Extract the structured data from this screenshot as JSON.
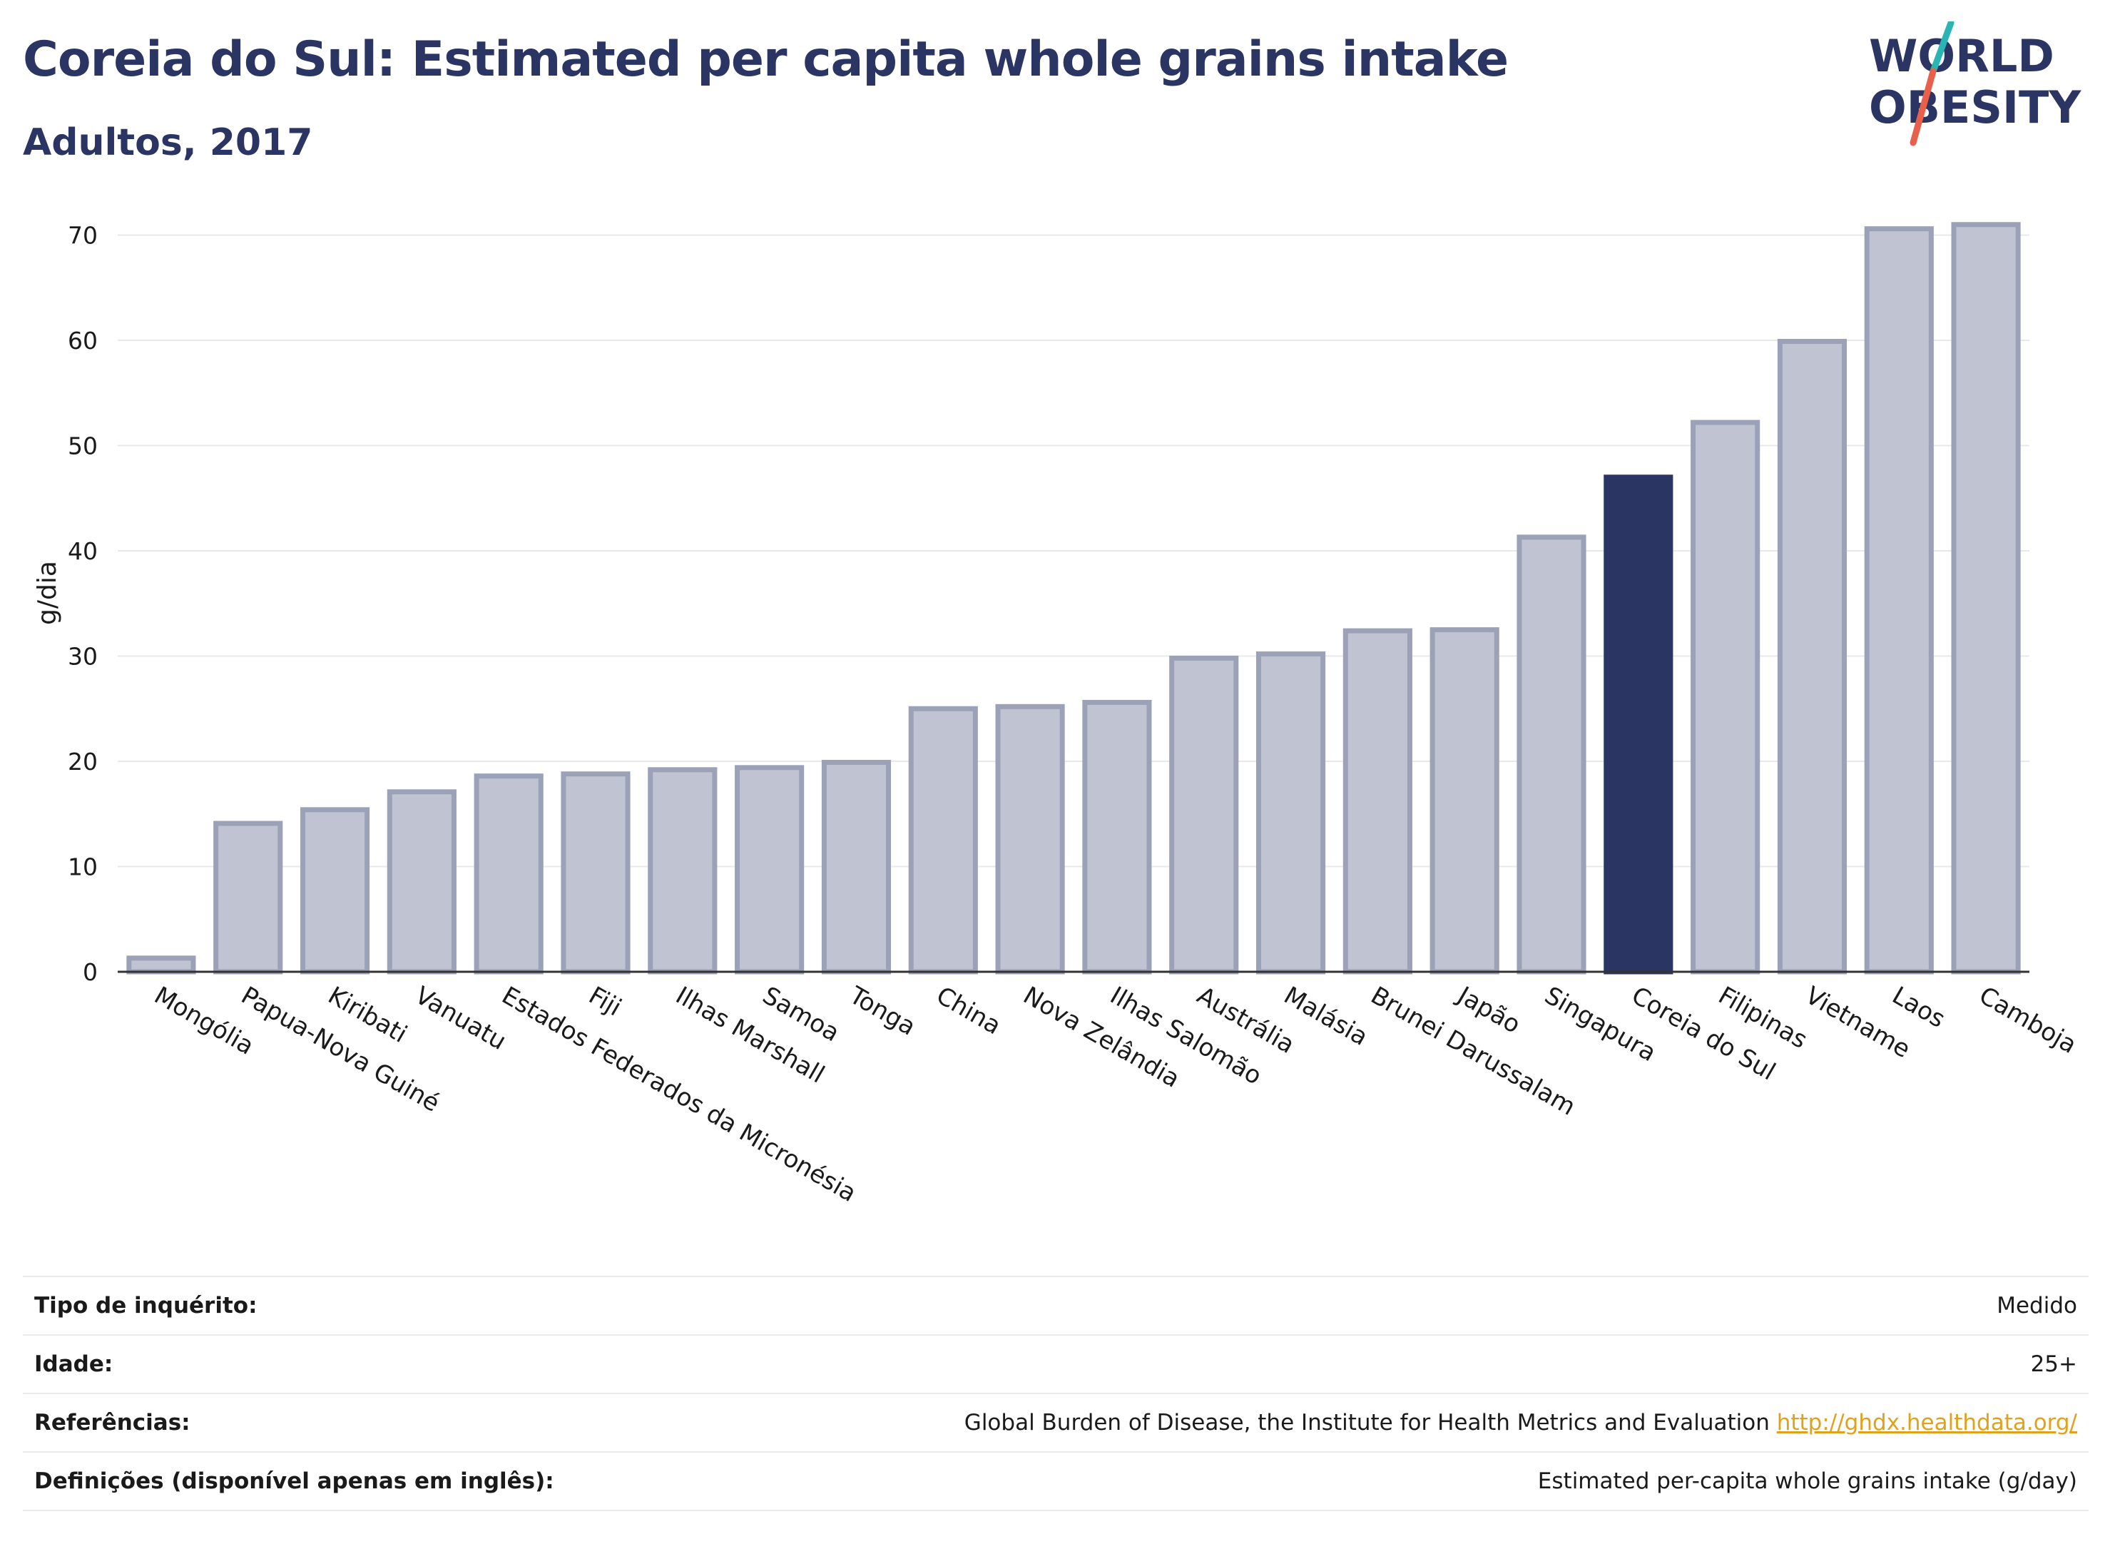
{
  "header": {
    "title": "Coreia do Sul: Estimated per capita whole grains intake",
    "subtitle": "Adultos, 2017"
  },
  "logo": {
    "line1": "WORLD",
    "line2": "OBESITY",
    "slash_colors": [
      "#2bb4b4",
      "#e8604c"
    ],
    "text_color": "#2b3563"
  },
  "chart_data": {
    "type": "bar",
    "ylabel": "g/dia",
    "ylim": [
      0,
      72
    ],
    "yticks": [
      0,
      10,
      20,
      30,
      40,
      50,
      60,
      70
    ],
    "grid": true,
    "highlight": "Coreia do Sul",
    "colors": {
      "bar": "#c0c4d2",
      "bar_edge": "#9ba1b7",
      "highlight": "#2b3563"
    },
    "categories": [
      "Mongólia",
      "Papua-Nova Guiné",
      "Kiribati",
      "Vanuatu",
      "Estados Federados da Micronésia",
      "Fiji",
      "Ilhas Marshall",
      "Samoa",
      "Tonga",
      "China",
      "Nova Zelândia",
      "Ilhas Salomão",
      "Austrália",
      "Malásia",
      "Brunei Darussalam",
      "Japão",
      "Singapura",
      "Coreia do Sul",
      "Filipinas",
      "Vietname",
      "Laos",
      "Camboja"
    ],
    "values": [
      1.3,
      14.1,
      15.4,
      17.1,
      18.6,
      18.8,
      19.2,
      19.4,
      19.9,
      25.0,
      25.2,
      25.6,
      29.8,
      30.2,
      32.4,
      32.5,
      41.3,
      47.0,
      52.2,
      59.9,
      70.6,
      71.0
    ]
  },
  "info": {
    "rows": [
      {
        "label": "Tipo de inquérito:",
        "value": "Medido"
      },
      {
        "label": "Idade:",
        "value": "25+"
      },
      {
        "label": "Referências:",
        "value": "Global Burden of Disease, the Institute for Health Metrics and Evaluation",
        "link": "http://ghdx.healthdata.org/"
      },
      {
        "label": "Definições (disponível apenas em inglês):",
        "value": "Estimated per-capita whole grains intake (g/day)"
      }
    ]
  }
}
